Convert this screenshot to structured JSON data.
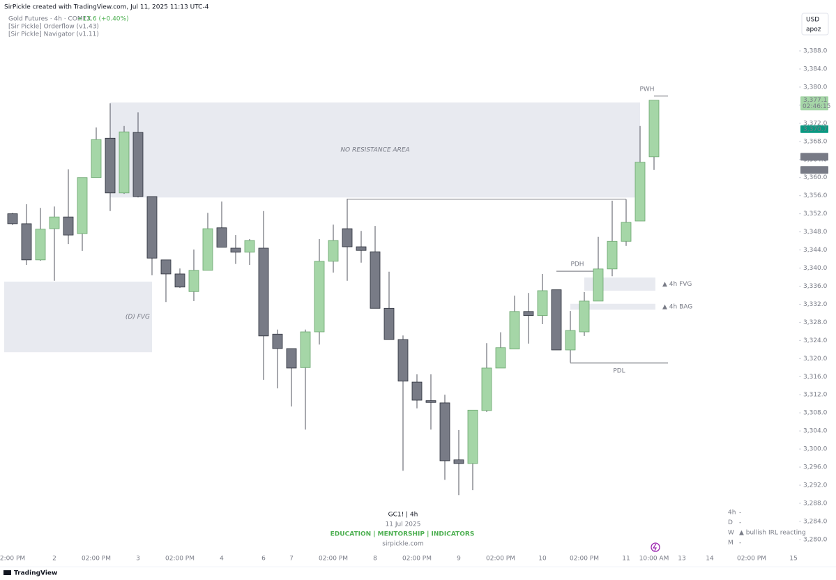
{
  "header": {
    "created": "SirPickle created with TradingView.com, Jul 11, 2025 11:13 UTC-4"
  },
  "legend": {
    "symbol": "Gold Futures · 4h · COMEX",
    "change": "+13.6 (+0.40%)",
    "indicators": [
      "[Sir Pickle] Orderflow (v1.43)",
      "[Sir Pickle] Navigator (v1.11)"
    ]
  },
  "currency": {
    "unit": "USD",
    "user": "apoz"
  },
  "watermark": {
    "symbol": "GC1!  |  4h",
    "date": "11 Jul 2025",
    "tagline": "EDUCATION  |  MENTORSHIP  |  INDICATORS",
    "site": "sirpickle.com"
  },
  "table": {
    "rows": [
      [
        "4h",
        "-"
      ],
      [
        "D",
        "-"
      ],
      [
        "W",
        "▲ bullish IRL reacting"
      ],
      [
        "M",
        "-"
      ]
    ]
  },
  "footer": {
    "brand": "TradingView"
  },
  "chart_data": {
    "type": "candlestick",
    "up_color": "#a5d6a7",
    "down_color": "#787b86",
    "ylim": [
      3276.75,
      3399.25
    ],
    "yticks": [
      {
        "value": 3280,
        "label": "3,280.0"
      },
      {
        "value": 3284,
        "label": "3,284.0"
      },
      {
        "value": 3288,
        "label": "3,288.0"
      },
      {
        "value": 3292,
        "label": "3,292.0"
      },
      {
        "value": 3296,
        "label": "3,296.0"
      },
      {
        "value": 3300,
        "label": "3,300.0"
      },
      {
        "value": 3304,
        "label": "3,304.0"
      },
      {
        "value": 3308,
        "label": "3,308.0"
      },
      {
        "value": 3312,
        "label": "3,312.0"
      },
      {
        "value": 3316,
        "label": "3,316.0"
      },
      {
        "value": 3320,
        "label": "3,320.0"
      },
      {
        "value": 3324,
        "label": "3,324.0"
      },
      {
        "value": 3328,
        "label": "3,328.0"
      },
      {
        "value": 3332,
        "label": "3,332.0"
      },
      {
        "value": 3336,
        "label": "3,336.0"
      },
      {
        "value": 3340,
        "label": "3,340.0"
      },
      {
        "value": 3344,
        "label": "3,344.0"
      },
      {
        "value": 3348,
        "label": "3,348.0"
      },
      {
        "value": 3352,
        "label": "3,352.0"
      },
      {
        "value": 3356,
        "label": "3,356.0"
      },
      {
        "value": 3360,
        "label": "3,360.0"
      },
      {
        "value": 3364,
        "label": "3,364.0"
      },
      {
        "value": 3368,
        "label": "3,368.0"
      },
      {
        "value": 3372,
        "label": "3,372.0"
      },
      {
        "value": 3376,
        "label": "3,376.0"
      },
      {
        "value": 3380,
        "label": "3,380.0"
      },
      {
        "value": 3384,
        "label": "3,384.0"
      },
      {
        "value": 3388,
        "label": "3,388.0"
      }
    ],
    "xticks": [
      {
        "value": 0,
        "label": "2:00 PM"
      },
      {
        "value": 3,
        "label": "2"
      },
      {
        "value": 6,
        "label": "02:00 PM"
      },
      {
        "value": 9,
        "label": "3"
      },
      {
        "value": 12,
        "label": "02:00 PM"
      },
      {
        "value": 15,
        "label": "4"
      },
      {
        "value": 18,
        "label": "6"
      },
      {
        "value": 20,
        "label": "7"
      },
      {
        "value": 23,
        "label": "02:00 PM"
      },
      {
        "value": 26,
        "label": "8"
      },
      {
        "value": 29,
        "label": "02:00 PM"
      },
      {
        "value": 32,
        "label": "9"
      },
      {
        "value": 35,
        "label": "02:00 PM"
      },
      {
        "value": 38,
        "label": "10"
      },
      {
        "value": 41,
        "label": "02:00 PM"
      },
      {
        "value": 44,
        "label": "11"
      },
      {
        "value": 46,
        "label": "10:00 AM"
      },
      {
        "value": 48,
        "label": "13"
      },
      {
        "value": 50,
        "label": "14"
      },
      {
        "value": 53,
        "label": "02:00 PM"
      },
      {
        "value": 56,
        "label": "15"
      }
    ],
    "candles": [
      {
        "o": 3352.0,
        "h": 3352.2,
        "l": 3349.5,
        "c": 3349.8
      },
      {
        "o": 3349.8,
        "h": 3354.1,
        "l": 3340.7,
        "c": 3341.8
      },
      {
        "o": 3341.8,
        "h": 3353.3,
        "l": 3341.6,
        "c": 3348.6
      },
      {
        "o": 3348.7,
        "h": 3353.6,
        "l": 3337.2,
        "c": 3351.3
      },
      {
        "o": 3351.3,
        "h": 3361.8,
        "l": 3345.3,
        "c": 3347.3
      },
      {
        "o": 3347.6,
        "h": 3360.0,
        "l": 3343.8,
        "c": 3360.0
      },
      {
        "o": 3360.0,
        "h": 3371.1,
        "l": 3360.0,
        "c": 3368.4
      },
      {
        "o": 3368.7,
        "h": 3376.4,
        "l": 3352.6,
        "c": 3356.6
      },
      {
        "o": 3356.6,
        "h": 3371.4,
        "l": 3356.4,
        "c": 3370.1
      },
      {
        "o": 3370.0,
        "h": 3374.4,
        "l": 3355.6,
        "c": 3355.8
      },
      {
        "o": 3355.8,
        "h": 3355.8,
        "l": 3338.4,
        "c": 3342.2
      },
      {
        "o": 3341.8,
        "h": 3341.8,
        "l": 3332.5,
        "c": 3338.7
      },
      {
        "o": 3338.7,
        "h": 3339.9,
        "l": 3335.6,
        "c": 3335.8
      },
      {
        "o": 3334.8,
        "h": 3344.1,
        "l": 3332.7,
        "c": 3339.5
      },
      {
        "o": 3339.5,
        "h": 3352.2,
        "l": 3339.5,
        "c": 3348.7
      },
      {
        "o": 3348.9,
        "h": 3354.7,
        "l": 3344.6,
        "c": 3344.6
      },
      {
        "o": 3344.4,
        "h": 3347.3,
        "l": 3340.9,
        "c": 3343.5
      },
      {
        "o": 3343.5,
        "h": 3346.4,
        "l": 3340.7,
        "c": 3346.1
      },
      {
        "o": 3344.4,
        "h": 3352.6,
        "l": 3315.3,
        "c": 3325.0
      },
      {
        "o": 3325.4,
        "h": 3326.4,
        "l": 3313.4,
        "c": 3322.2
      },
      {
        "o": 3322.2,
        "h": 3322.2,
        "l": 3309.4,
        "c": 3317.9
      },
      {
        "o": 3318.0,
        "h": 3326.4,
        "l": 3304.3,
        "c": 3325.9
      },
      {
        "o": 3325.9,
        "h": 3346.4,
        "l": 3323.1,
        "c": 3341.5
      },
      {
        "o": 3341.5,
        "h": 3349.6,
        "l": 3339.0,
        "c": 3346.1
      },
      {
        "o": 3348.7,
        "h": 3355.3,
        "l": 3337.2,
        "c": 3344.7
      },
      {
        "o": 3344.7,
        "h": 3348.2,
        "l": 3341.2,
        "c": 3343.9
      },
      {
        "o": 3343.6,
        "h": 3349.3,
        "l": 3331.1,
        "c": 3331.1
      },
      {
        "o": 3331.1,
        "h": 3339.2,
        "l": 3324.2,
        "c": 3324.2
      },
      {
        "o": 3324.2,
        "h": 3325.1,
        "l": 3295.2,
        "c": 3315.0
      },
      {
        "o": 3314.8,
        "h": 3316.5,
        "l": 3309.0,
        "c": 3310.8
      },
      {
        "o": 3310.7,
        "h": 3316.5,
        "l": 3304.3,
        "c": 3310.3
      },
      {
        "o": 3310.2,
        "h": 3312.0,
        "l": 3293.2,
        "c": 3297.4
      },
      {
        "o": 3297.6,
        "h": 3304.2,
        "l": 3289.8,
        "c": 3296.8
      },
      {
        "o": 3296.8,
        "h": 3308.6,
        "l": 3290.9,
        "c": 3308.6
      },
      {
        "o": 3308.5,
        "h": 3323.4,
        "l": 3308.2,
        "c": 3317.9
      },
      {
        "o": 3317.9,
        "h": 3325.8,
        "l": 3317.9,
        "c": 3322.4
      },
      {
        "o": 3322.1,
        "h": 3333.9,
        "l": 3322.1,
        "c": 3330.4
      },
      {
        "o": 3330.4,
        "h": 3334.5,
        "l": 3323.3,
        "c": 3329.5
      },
      {
        "o": 3329.5,
        "h": 3338.7,
        "l": 3327.6,
        "c": 3335.0
      },
      {
        "o": 3335.2,
        "h": 3335.2,
        "l": 3321.9,
        "c": 3321.9
      },
      {
        "o": 3321.9,
        "h": 3330.5,
        "l": 3319.1,
        "c": 3326.2
      },
      {
        "o": 3325.9,
        "h": 3334.7,
        "l": 3325.0,
        "c": 3332.7
      },
      {
        "o": 3332.7,
        "h": 3346.9,
        "l": 3332.7,
        "c": 3339.8
      },
      {
        "o": 3339.8,
        "h": 3354.9,
        "l": 3338.2,
        "c": 3345.9
      },
      {
        "o": 3345.9,
        "h": 3355.2,
        "l": 3344.9,
        "c": 3350.1
      },
      {
        "o": 3350.4,
        "h": 3371.4,
        "l": 3350.4,
        "c": 3363.4
      },
      {
        "o": 3364.6,
        "h": 3377.1,
        "l": 3361.7,
        "c": 3377.1
      }
    ],
    "zones": [
      {
        "label": "NO RESISTANCE AREA",
        "top": 3376.6,
        "bottom": 3355.6,
        "x0": 7,
        "x1": 45,
        "label_pos": "center"
      },
      {
        "label": "(D) FVG",
        "top": 3337.0,
        "bottom": 3321.4,
        "x0": -0.6,
        "x1": 10,
        "label_pos": "inside-right"
      },
      {
        "label": "▲ 4h FVG",
        "top": 3337.9,
        "bottom": 3335.0,
        "x0": 41,
        "x1": 46.1,
        "label_pos": "right"
      },
      {
        "label": "▲ 4h BAG",
        "top": 3332.1,
        "bottom": 3330.8,
        "x0": 40,
        "x1": 46.1,
        "label_pos": "right"
      }
    ],
    "levels": [
      {
        "label": "PWH",
        "value": 3378.0,
        "x0": 46,
        "x1": 47,
        "label_pos": "above"
      },
      {
        "label": "PDH",
        "value": 3339.3,
        "x0": 39,
        "x1": 42,
        "label_pos": "above"
      },
      {
        "label": "PDL",
        "value": 3319.0,
        "x0": 40,
        "x1": 47,
        "label_pos": "below"
      },
      {
        "value": 3355.2,
        "x0": 24,
        "x1": 44
      }
    ],
    "price_labels": [
      {
        "value": 3377.1,
        "label": "3,377.1",
        "sub": "02:46:15",
        "color": "#a5d6a7",
        "text_color": "#1e3a1f"
      },
      {
        "value": 3370.7,
        "label": "3,370.7",
        "color": "#089981",
        "text_color": "#ffffff"
      },
      {
        "value": 3364.6,
        "label": "3,364.6",
        "color": "#787b86",
        "text_color": "#ffffff"
      },
      {
        "value": 3361.7,
        "label": "3,361.7",
        "color": "#787b86",
        "text_color": "#ffffff"
      }
    ]
  }
}
